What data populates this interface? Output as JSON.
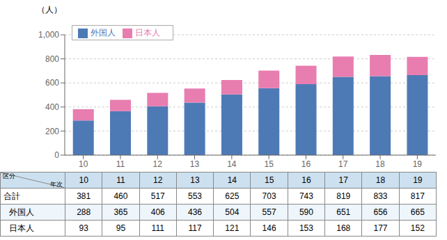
{
  "chart_data": {
    "type": "bar",
    "stacked": true,
    "y_label": "（人）",
    "categories": [
      "10",
      "11",
      "12",
      "13",
      "14",
      "15",
      "16",
      "17",
      "18",
      "19"
    ],
    "series": [
      {
        "name": "外国人",
        "color": "#4d7ab5",
        "values": [
          288,
          365,
          406,
          436,
          504,
          557,
          590,
          651,
          656,
          665
        ]
      },
      {
        "name": "日本人",
        "color": "#e87db0",
        "values": [
          93,
          95,
          111,
          117,
          121,
          146,
          153,
          168,
          177,
          152
        ]
      }
    ],
    "ylim": [
      0,
      1000
    ],
    "yticks": [
      0,
      200,
      400,
      600,
      800,
      {
        "value": 1000,
        "label": "1,000"
      }
    ],
    "grid": true,
    "legend": "upper left",
    "table_corner_top": "区分",
    "table_corner_bottom": "年次",
    "total_label": "合計",
    "totals": [
      381,
      460,
      517,
      553,
      625,
      703,
      743,
      819,
      833,
      817
    ]
  }
}
